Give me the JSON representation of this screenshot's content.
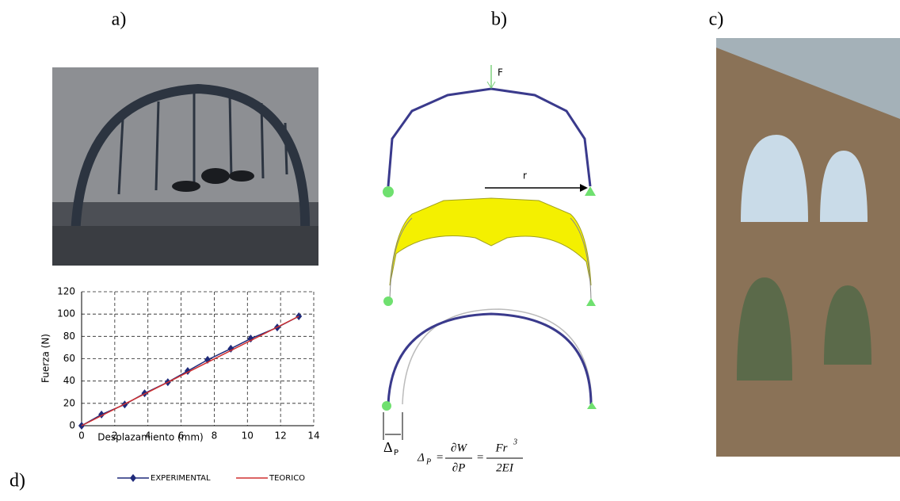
{
  "panel_labels": [
    "a)",
    "b)",
    "c)",
    "d)"
  ],
  "diagram": {
    "force_label": "F",
    "radius_label": "r",
    "delta_label": "Δ",
    "delta_sub": "P",
    "formula": {
      "lhs": "Δ",
      "lhs_sub": "P",
      "eq1": "=",
      "num1": "∂W",
      "den1": "∂P",
      "eq2": "=",
      "num2": "Fr",
      "num2_sup": "3",
      "den2": "2EI"
    }
  },
  "chart_data": {
    "type": "line",
    "x_label": "Desplazamiento (mm)",
    "y_label": "Fuerza (N)",
    "xlim": [
      0,
      14
    ],
    "xticks": [
      0,
      2,
      4,
      6,
      8,
      10,
      12,
      14
    ],
    "ylim": [
      0,
      120
    ],
    "yticks": [
      0,
      20,
      40,
      60,
      80,
      100,
      120
    ],
    "grid": true,
    "series": [
      {
        "name": "EXPERIMENTAL",
        "color": "#1f2a7a",
        "marker": "diamond",
        "x": [
          0,
          1.2,
          2.6,
          3.8,
          5.2,
          6.4,
          7.6,
          9,
          10.2,
          11.8,
          13.1
        ],
        "values": [
          0,
          10,
          19,
          29,
          39,
          49,
          59,
          69,
          78,
          88,
          98
        ]
      },
      {
        "name": "TEORICO",
        "color": "#d03030",
        "marker": "none",
        "x": [
          0,
          13.1
        ],
        "values": [
          0,
          98
        ]
      }
    ]
  }
}
